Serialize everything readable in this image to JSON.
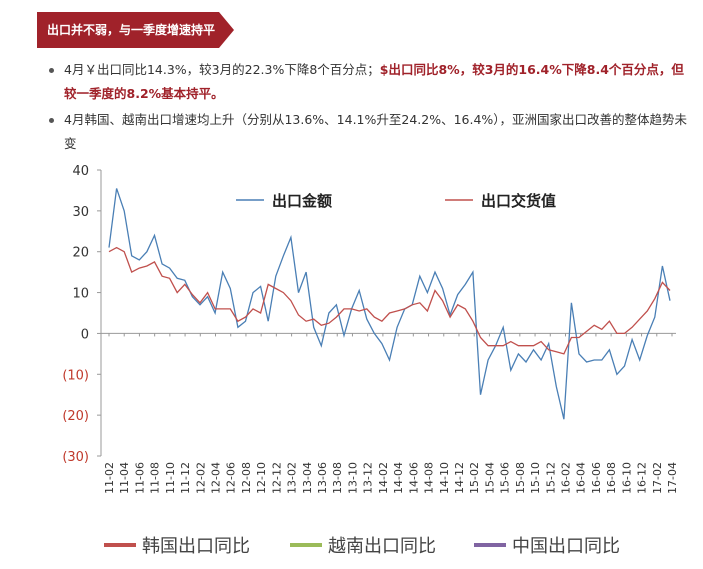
{
  "header": {
    "title": "出口并不弱，与一季度增速持平",
    "color": "#a0222a"
  },
  "bullets": [
    {
      "plain": "4月￥出口同比14.3%，较3月的22.3%下降8个百分点；",
      "highlight": "$出口同比8%，较3月的16.4%下降8.4个百分点，但较一季度的8.2%基本持平。"
    },
    {
      "plain": "4月韩国、越南出口增速均上升（分别从13.6%、14.1%升至24.2%、16.4%），亚洲国家出口改善的整体趋势未变",
      "highlight": ""
    }
  ],
  "chart_data": {
    "type": "line",
    "ylim": [
      -30,
      40
    ],
    "yticks": [
      "40",
      "30",
      "20",
      "10",
      "0",
      "(10)",
      "(20)",
      "(30)"
    ],
    "ytick_values": [
      40,
      30,
      20,
      10,
      0,
      -10,
      -20,
      -30
    ],
    "x_tick_labels": [
      "11-02",
      "11-04",
      "11-06",
      "11-08",
      "11-10",
      "11-12",
      "12-02",
      "12-04",
      "12-06",
      "12-08",
      "12-10",
      "12-12",
      "13-02",
      "13-04",
      "13-06",
      "13-08",
      "13-10",
      "13-12",
      "14-02",
      "14-04",
      "14-06",
      "14-08",
      "14-10",
      "14-12",
      "15-02",
      "15-04",
      "15-06",
      "15-08",
      "15-10",
      "15-12",
      "16-02",
      "16-04",
      "16-06",
      "16-08",
      "16-10",
      "16-12",
      "17-02",
      "17-04"
    ],
    "series": [
      {
        "name": "出口金额",
        "color": "#4a7fb5",
        "values": [
          21,
          35.5,
          30,
          19,
          18,
          20,
          24,
          17,
          16,
          13.5,
          13,
          9,
          7,
          9,
          5,
          15,
          11,
          1.5,
          3,
          10,
          11.5,
          3,
          14,
          19,
          23.5,
          10,
          15,
          1.5,
          -3,
          5,
          7,
          -0.5,
          6,
          10.5,
          3.5,
          0,
          -2.5,
          -6.5,
          1.5,
          6,
          7,
          14,
          10,
          15,
          11,
          4.5,
          9.5,
          12,
          15,
          -15,
          -6.5,
          -3,
          1.5,
          -9,
          -5,
          -7,
          -4,
          -6.5,
          -2.5,
          -13,
          -21,
          7.5,
          -5,
          -7,
          -6.5,
          -6.5,
          -4,
          -10,
          -8,
          -1.5,
          -6.5,
          -0.5,
          4,
          16.5,
          8
        ]
      },
      {
        "name": "出口交货值",
        "color": "#c0504d",
        "values": [
          20,
          21,
          20,
          15,
          16,
          16.5,
          17.5,
          14,
          13.5,
          10,
          12,
          9.5,
          7.5,
          10,
          6,
          6,
          6,
          3,
          4,
          6,
          5,
          12,
          11,
          10,
          8,
          4.5,
          3,
          3.5,
          2,
          2.5,
          4,
          6,
          6,
          5.5,
          6,
          4,
          3,
          5,
          5.5,
          6,
          7,
          7.5,
          5.5,
          10.5,
          8,
          4,
          7,
          6,
          3,
          -1,
          -3,
          -3,
          -3,
          -2,
          -3,
          -3,
          -3,
          -2,
          -4,
          -4.5,
          -5,
          -1,
          -1,
          0.5,
          2,
          1,
          3,
          0,
          0,
          1.5,
          3.5,
          5.5,
          8.5,
          12.5,
          10.5
        ]
      }
    ],
    "legend_top": [
      "出口金额",
      "出口交货值"
    ],
    "legend_bottom": [
      {
        "label": "韩国出口同比",
        "color": "#c0504d"
      },
      {
        "label": "越南出口同比",
        "color": "#9bbb59"
      },
      {
        "label": "中国出口同比",
        "color": "#8064a2"
      }
    ]
  }
}
